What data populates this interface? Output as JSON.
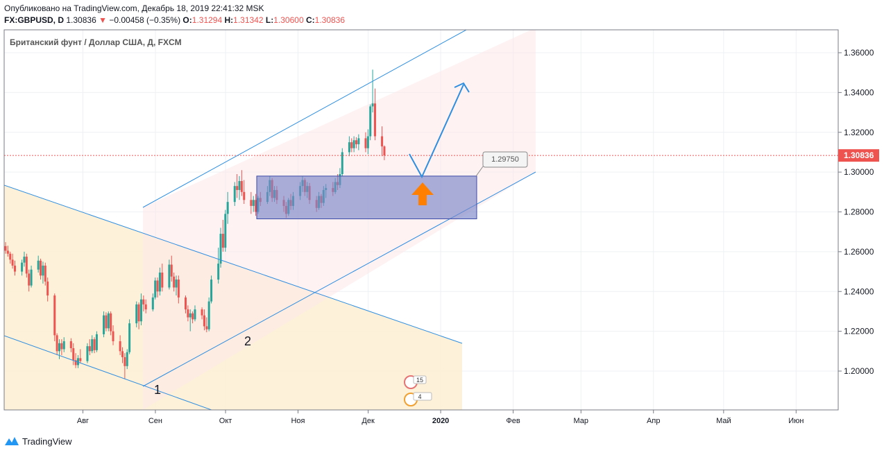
{
  "header": {
    "published": "Опубликовано на TradingView.com, Декабрь 18, 2019 22:41:32 MSK",
    "symbol": "FX:GBPUSD, D",
    "last": "1.30836",
    "change": "−0.00458 (−0.35%)",
    "o_label": "O:",
    "o_value": "1.31294",
    "h_label": "H:",
    "h_value": "1.31342",
    "l_label": "L:",
    "l_value": "1.30600",
    "c_label": "C:",
    "c_value": "1.30836"
  },
  "footer": {
    "brand": "TradingView"
  },
  "colors": {
    "up": "#26a69a",
    "down": "#ef5350",
    "channel": "#2e8ee0",
    "zone": "#7b86c8",
    "arrow": "#ff7f00"
  },
  "chart_data": {
    "type": "candlestick",
    "title": "Британский фунт / Доллар США, Д, FXCM",
    "ylim": [
      1.18,
      1.37
    ],
    "y_ticks": [
      1.2,
      1.22,
      1.24,
      1.26,
      1.28,
      1.3,
      1.32,
      1.34,
      1.36
    ],
    "y_tick_labels": [
      "1.20000",
      "1.22000",
      "1.24000",
      "1.26000",
      "1.28000",
      "1.30000",
      "1.32000",
      "1.34000",
      "1.36000"
    ],
    "x_tick_labels": [
      "Авг",
      "Сен",
      "Окт",
      "Ноя",
      "Дек",
      "2020",
      "Фев",
      "Мар",
      "Апр",
      "Май",
      "Июн"
    ],
    "last_price_label": "1.30836",
    "last_price": 1.30836,
    "annotations": [
      {
        "type": "price-label",
        "text": "1.29750",
        "value": 1.2975
      },
      {
        "type": "point-label",
        "text": "1"
      },
      {
        "type": "point-label",
        "text": "2"
      }
    ],
    "events": [
      "15",
      "4"
    ],
    "zone": {
      "low": 1.2765,
      "high": 1.298
    },
    "candles": [
      {
        "o": 1.2628,
        "h": 1.2648,
        "l": 1.259,
        "c": 1.2605
      },
      {
        "o": 1.2605,
        "h": 1.263,
        "l": 1.2575,
        "c": 1.259
      },
      {
        "o": 1.259,
        "h": 1.26,
        "l": 1.254,
        "c": 1.256
      },
      {
        "o": 1.256,
        "h": 1.259,
        "l": 1.2515,
        "c": 1.253
      },
      {
        "o": 1.253,
        "h": 1.2555,
        "l": 1.248,
        "c": 1.25
      },
      {
        "o": 1.25,
        "h": 1.256,
        "l": 1.248,
        "c": 1.2545
      },
      {
        "o": 1.2545,
        "h": 1.26,
        "l": 1.2525,
        "c": 1.2575
      },
      {
        "o": 1.2575,
        "h": 1.259,
        "l": 1.247,
        "c": 1.249
      },
      {
        "o": 1.249,
        "h": 1.251,
        "l": 1.24,
        "c": 1.243
      },
      {
        "o": 1.243,
        "h": 1.253,
        "l": 1.242,
        "c": 1.251
      },
      {
        "o": 1.251,
        "h": 1.258,
        "l": 1.2495,
        "c": 1.2555
      },
      {
        "o": 1.2555,
        "h": 1.2565,
        "l": 1.246,
        "c": 1.248
      },
      {
        "o": 1.248,
        "h": 1.255,
        "l": 1.244,
        "c": 1.253
      },
      {
        "o": 1.253,
        "h": 1.2545,
        "l": 1.243,
        "c": 1.245
      },
      {
        "o": 1.245,
        "h": 1.247,
        "l": 1.235,
        "c": 1.238
      },
      {
        "o": 1.238,
        "h": 1.239,
        "l": 1.215,
        "c": 1.218
      },
      {
        "o": 1.218,
        "h": 1.219,
        "l": 1.208,
        "c": 1.21
      },
      {
        "o": 1.21,
        "h": 1.216,
        "l": 1.206,
        "c": 1.214
      },
      {
        "o": 1.214,
        "h": 1.216,
        "l": 1.208,
        "c": 1.211
      },
      {
        "o": 1.211,
        "h": 1.217,
        "l": 1.2095,
        "c": 1.215
      },
      {
        "o": 1.215,
        "h": 1.2165,
        "l": 1.2095,
        "c": 1.2115
      },
      {
        "o": 1.2115,
        "h": 1.214,
        "l": 1.203,
        "c": 1.2055
      },
      {
        "o": 1.2055,
        "h": 1.209,
        "l": 1.2015,
        "c": 1.203
      },
      {
        "o": 1.203,
        "h": 1.208,
        "l": 1.2015,
        "c": 1.2065
      },
      {
        "o": 1.2065,
        "h": 1.211,
        "l": 1.204,
        "c": 1.205
      },
      {
        "o": 1.205,
        "h": 1.214,
        "l": 1.204,
        "c": 1.2125
      },
      {
        "o": 1.2125,
        "h": 1.216,
        "l": 1.208,
        "c": 1.21
      },
      {
        "o": 1.21,
        "h": 1.218,
        "l": 1.209,
        "c": 1.216
      },
      {
        "o": 1.216,
        "h": 1.217,
        "l": 1.209,
        "c": 1.2105
      },
      {
        "o": 1.2105,
        "h": 1.22,
        "l": 1.2095,
        "c": 1.2185
      },
      {
        "o": 1.2185,
        "h": 1.23,
        "l": 1.217,
        "c": 1.228
      },
      {
        "o": 1.228,
        "h": 1.2295,
        "l": 1.22,
        "c": 1.2215
      },
      {
        "o": 1.2215,
        "h": 1.23,
        "l": 1.22,
        "c": 1.229
      },
      {
        "o": 1.229,
        "h": 1.23,
        "l": 1.218,
        "c": 1.22
      },
      {
        "o": 1.22,
        "h": 1.223,
        "l": 1.213,
        "c": 1.215
      },
      {
        "o": 1.215,
        "h": 1.218,
        "l": 1.208,
        "c": 1.21
      },
      {
        "o": 1.21,
        "h": 1.212,
        "l": 1.204,
        "c": 1.207
      },
      {
        "o": 1.207,
        "h": 1.209,
        "l": 1.196,
        "c": 1.2025
      },
      {
        "o": 1.2025,
        "h": 1.211,
        "l": 1.201,
        "c": 1.2095
      },
      {
        "o": 1.2095,
        "h": 1.226,
        "l": 1.2085,
        "c": 1.224
      },
      {
        "o": 1.224,
        "h": 1.235,
        "l": 1.222,
        "c": 1.2335
      },
      {
        "o": 1.2335,
        "h": 1.2345,
        "l": 1.221,
        "c": 1.225
      },
      {
        "o": 1.225,
        "h": 1.239,
        "l": 1.223,
        "c": 1.236
      },
      {
        "o": 1.236,
        "h": 1.238,
        "l": 1.23,
        "c": 1.2335
      },
      {
        "o": 1.2335,
        "h": 1.236,
        "l": 1.229,
        "c": 1.231
      },
      {
        "o": 1.231,
        "h": 1.239,
        "l": 1.23,
        "c": 1.237
      },
      {
        "o": 1.237,
        "h": 1.247,
        "l": 1.236,
        "c": 1.2455
      },
      {
        "o": 1.2455,
        "h": 1.247,
        "l": 1.237,
        "c": 1.24
      },
      {
        "o": 1.24,
        "h": 1.252,
        "l": 1.238,
        "c": 1.2495
      },
      {
        "o": 1.2495,
        "h": 1.254,
        "l": 1.24,
        "c": 1.242
      },
      {
        "o": 1.242,
        "h": 1.256,
        "l": 1.241,
        "c": 1.2535
      },
      {
        "o": 1.2535,
        "h": 1.258,
        "l": 1.245,
        "c": 1.2475
      },
      {
        "o": 1.2475,
        "h": 1.2495,
        "l": 1.24,
        "c": 1.242
      },
      {
        "o": 1.242,
        "h": 1.248,
        "l": 1.238,
        "c": 1.246
      },
      {
        "o": 1.246,
        "h": 1.248,
        "l": 1.234,
        "c": 1.237
      },
      {
        "o": 1.237,
        "h": 1.238,
        "l": 1.229,
        "c": 1.231
      },
      {
        "o": 1.231,
        "h": 1.233,
        "l": 1.225,
        "c": 1.227
      },
      {
        "o": 1.227,
        "h": 1.231,
        "l": 1.22,
        "c": 1.229
      },
      {
        "o": 1.229,
        "h": 1.23,
        "l": 1.224,
        "c": 1.226
      },
      {
        "o": 1.226,
        "h": 1.233,
        "l": 1.225,
        "c": 1.231
      },
      {
        "o": 1.231,
        "h": 1.232,
        "l": 1.226,
        "c": 1.228
      },
      {
        "o": 1.228,
        "h": 1.231,
        "l": 1.2205,
        "c": 1.2225
      },
      {
        "o": 1.2225,
        "h": 1.227,
        "l": 1.2195,
        "c": 1.221
      },
      {
        "o": 1.221,
        "h": 1.237,
        "l": 1.22,
        "c": 1.235
      },
      {
        "o": 1.235,
        "h": 1.248,
        "l": 1.234,
        "c": 1.246
      },
      {
        "o": 1.246,
        "h": 1.262,
        "l": 1.244,
        "c": 1.254
      },
      {
        "o": 1.254,
        "h": 1.272,
        "l": 1.252,
        "c": 1.269
      },
      {
        "o": 1.269,
        "h": 1.276,
        "l": 1.26,
        "c": 1.262
      },
      {
        "o": 1.262,
        "h": 1.281,
        "l": 1.26,
        "c": 1.279
      },
      {
        "o": 1.279,
        "h": 1.29,
        "l": 1.274,
        "c": 1.285
      },
      {
        "o": 1.285,
        "h": 1.295,
        "l": 1.283,
        "c": 1.293
      },
      {
        "o": 1.293,
        "h": 1.299,
        "l": 1.287,
        "c": 1.291
      },
      {
        "o": 1.291,
        "h": 1.298,
        "l": 1.286,
        "c": 1.2955
      },
      {
        "o": 1.2955,
        "h": 1.301,
        "l": 1.288,
        "c": 1.29
      },
      {
        "o": 1.29,
        "h": 1.296,
        "l": 1.284,
        "c": 1.286
      },
      {
        "o": 1.286,
        "h": 1.29,
        "l": 1.279,
        "c": 1.283
      },
      {
        "o": 1.283,
        "h": 1.288,
        "l": 1.28,
        "c": 1.286
      },
      {
        "o": 1.286,
        "h": 1.289,
        "l": 1.278,
        "c": 1.28
      },
      {
        "o": 1.28,
        "h": 1.288,
        "l": 1.279,
        "c": 1.287
      },
      {
        "o": 1.287,
        "h": 1.29,
        "l": 1.283,
        "c": 1.285
      },
      {
        "o": 1.285,
        "h": 1.293,
        "l": 1.284,
        "c": 1.29
      },
      {
        "o": 1.29,
        "h": 1.298,
        "l": 1.288,
        "c": 1.296
      },
      {
        "o": 1.296,
        "h": 1.297,
        "l": 1.285,
        "c": 1.287
      },
      {
        "o": 1.287,
        "h": 1.293,
        "l": 1.285,
        "c": 1.291
      },
      {
        "o": 1.291,
        "h": 1.293,
        "l": 1.284,
        "c": 1.286
      },
      {
        "o": 1.286,
        "h": 1.288,
        "l": 1.28,
        "c": 1.283
      },
      {
        "o": 1.283,
        "h": 1.285,
        "l": 1.277,
        "c": 1.279
      },
      {
        "o": 1.279,
        "h": 1.287,
        "l": 1.278,
        "c": 1.286
      },
      {
        "o": 1.286,
        "h": 1.289,
        "l": 1.281,
        "c": 1.283
      },
      {
        "o": 1.283,
        "h": 1.29,
        "l": 1.281,
        "c": 1.288
      },
      {
        "o": 1.288,
        "h": 1.295,
        "l": 1.286,
        "c": 1.293
      },
      {
        "o": 1.293,
        "h": 1.298,
        "l": 1.29,
        "c": 1.296
      },
      {
        "o": 1.296,
        "h": 1.297,
        "l": 1.288,
        "c": 1.29
      },
      {
        "o": 1.29,
        "h": 1.295,
        "l": 1.287,
        "c": 1.293
      },
      {
        "o": 1.293,
        "h": 1.2945,
        "l": 1.284,
        "c": 1.286
      },
      {
        "o": 1.286,
        "h": 1.288,
        "l": 1.28,
        "c": 1.282
      },
      {
        "o": 1.282,
        "h": 1.29,
        "l": 1.281,
        "c": 1.288
      },
      {
        "o": 1.288,
        "h": 1.289,
        "l": 1.282,
        "c": 1.2845
      },
      {
        "o": 1.2845,
        "h": 1.293,
        "l": 1.283,
        "c": 1.291
      },
      {
        "o": 1.291,
        "h": 1.294,
        "l": 1.287,
        "c": 1.292
      },
      {
        "o": 1.292,
        "h": 1.295,
        "l": 1.288,
        "c": 1.29
      },
      {
        "o": 1.29,
        "h": 1.297,
        "l": 1.289,
        "c": 1.295
      },
      {
        "o": 1.295,
        "h": 1.299,
        "l": 1.291,
        "c": 1.2935
      },
      {
        "o": 1.2935,
        "h": 1.302,
        "l": 1.292,
        "c": 1.299
      },
      {
        "o": 1.299,
        "h": 1.312,
        "l": 1.298,
        "c": 1.31
      },
      {
        "o": 1.31,
        "h": 1.318,
        "l": 1.308,
        "c": 1.315
      },
      {
        "o": 1.315,
        "h": 1.317,
        "l": 1.31,
        "c": 1.312
      },
      {
        "o": 1.312,
        "h": 1.318,
        "l": 1.31,
        "c": 1.316
      },
      {
        "o": 1.316,
        "h": 1.3175,
        "l": 1.312,
        "c": 1.314
      },
      {
        "o": 1.314,
        "h": 1.319,
        "l": 1.311,
        "c": 1.317
      },
      {
        "o": 1.317,
        "h": 1.32,
        "l": 1.31,
        "c": 1.312
      },
      {
        "o": 1.312,
        "h": 1.3215,
        "l": 1.309,
        "c": 1.318
      },
      {
        "o": 1.318,
        "h": 1.334,
        "l": 1.316,
        "c": 1.333
      },
      {
        "o": 1.333,
        "h": 1.3515,
        "l": 1.33,
        "c": 1.3345
      },
      {
        "o": 1.3345,
        "h": 1.342,
        "l": 1.316,
        "c": 1.318
      },
      {
        "o": 1.318,
        "h": 1.323,
        "l": 1.308,
        "c": 1.3129
      },
      {
        "o": 1.3129,
        "h": 1.3134,
        "l": 1.306,
        "c": 1.3084
      }
    ]
  }
}
